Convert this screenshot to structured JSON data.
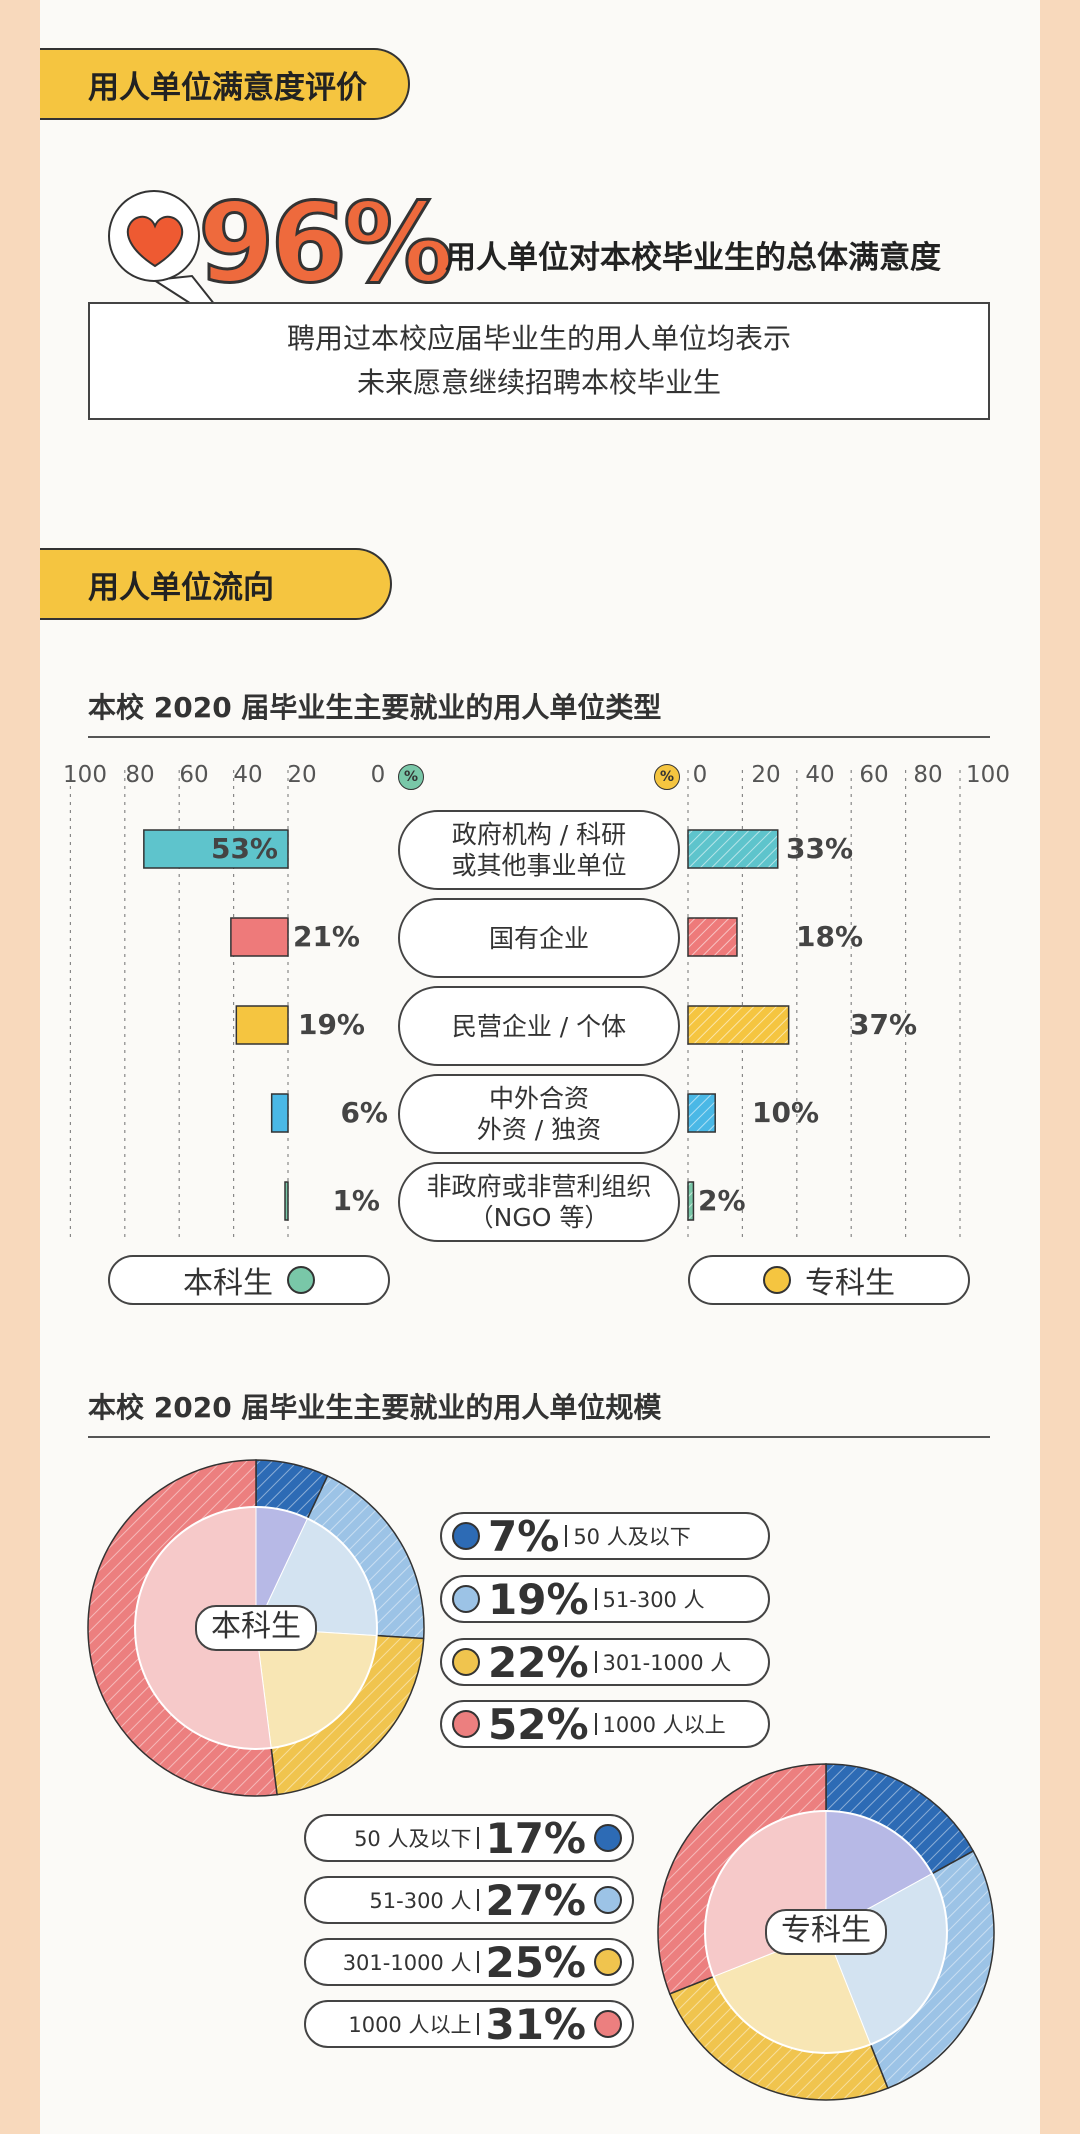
{
  "sections": {
    "satisfaction_title": "用人单位满意度评价",
    "flow_title": "用人单位流向"
  },
  "satisfaction": {
    "percent": "96%",
    "label": "用人单位对本校毕业生的总体满意度",
    "note_line1": "聘用过本校应届毕业生的用人单位均表示",
    "note_line2": "未来愿意继续招聘本校毕业生"
  },
  "chart_data": [
    {
      "type": "bar",
      "title": "本校 2020 届毕业生主要就业的用人单位类型",
      "categories": [
        "政府机构 / 科研\n或其他事业单位",
        "国有企业",
        "民营企业 / 个体",
        "中外合资\n外资 / 独资",
        "非政府或非营利组织\n（NGO 等）"
      ],
      "series": [
        {
          "name": "本科生",
          "values": [
            53,
            21,
            19,
            6,
            1
          ]
        },
        {
          "name": "专科生",
          "values": [
            33,
            18,
            37,
            10,
            2
          ]
        }
      ],
      "value_labels_left": [
        "53%",
        "21%",
        "19%",
        "6%",
        "1%"
      ],
      "value_labels_right": [
        "33%",
        "18%",
        "37%",
        "10%",
        "2%"
      ],
      "colors": [
        "#5ec4cc",
        "#ee7a7a",
        "#f5c540",
        "#4ab8e6",
        "#79c7a8"
      ],
      "xlim": [
        0,
        100
      ],
      "ticks": [
        "0",
        "20",
        "40",
        "60",
        "80",
        "100"
      ],
      "unit_icon": "%",
      "grid": true
    },
    {
      "type": "pie",
      "title": "本校 2020 届毕业生主要就业的用人单位规模",
      "charts": [
        {
          "name": "本科生",
          "labels": [
            "50 人及以下",
            "51-300 人",
            "301-1000 人",
            "1000 人以上"
          ],
          "values": [
            7,
            19,
            22,
            52
          ],
          "value_labels": [
            "7%",
            "19%",
            "22%",
            "52%"
          ]
        },
        {
          "name": "专科生",
          "labels": [
            "50 人及以下",
            "51-300 人",
            "301-1000 人",
            "1000 人以上"
          ],
          "values": [
            17,
            27,
            25,
            31
          ],
          "value_labels": [
            "17%",
            "27%",
            "25%",
            "31%"
          ]
        }
      ],
      "colors": [
        "#2d6bb5",
        "#9cc3e6",
        "#f0c44e",
        "#ec7f7f"
      ],
      "light_colors": [
        "#b7b9e6",
        "#d3e3f1",
        "#f8e6b4",
        "#f6c9c9"
      ]
    }
  ],
  "legend": {
    "left": "本科生",
    "right": "专科生",
    "left_color": "#79c7a8",
    "right_color": "#f5c540"
  },
  "icons": {
    "heart": "heart-icon",
    "percent": "percent-icon"
  },
  "colors": {
    "accent_yellow": "#f5c540",
    "accent_orange": "#ee6a3d",
    "page_border": "#f8d9bc"
  }
}
